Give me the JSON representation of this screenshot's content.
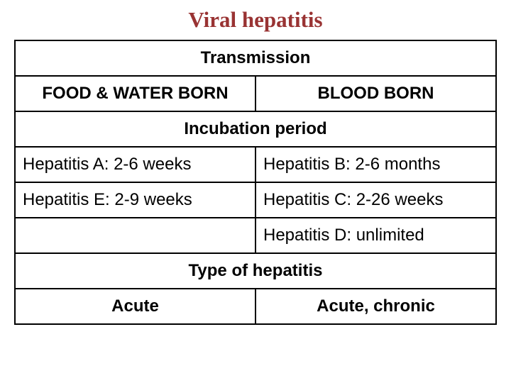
{
  "title": "Viral hepatitis",
  "sections": {
    "transmission": {
      "header": "Transmission",
      "left": "FOOD & WATER BORN",
      "right": "BLOOD BORN"
    },
    "incubation": {
      "header": "Incubation period",
      "rows": [
        {
          "left": "Hepatitis A: 2-6 weeks",
          "right": "Hepatitis B: 2-6 months"
        },
        {
          "left": "Hepatitis E: 2-9 weeks",
          "right": "Hepatitis C: 2-26 weeks"
        },
        {
          "left": "",
          "right": "Hepatitis D: unlimited"
        }
      ]
    },
    "type": {
      "header": "Type of hepatitis",
      "left": "Acute",
      "right": "Acute, chronic"
    }
  },
  "colors": {
    "title": "#993333",
    "border": "#000000",
    "background": "#ffffff",
    "text": "#000000"
  },
  "fonts": {
    "title_family": "Times New Roman",
    "title_size_pt": 23,
    "body_family": "Arial",
    "body_size_pt": 18
  }
}
